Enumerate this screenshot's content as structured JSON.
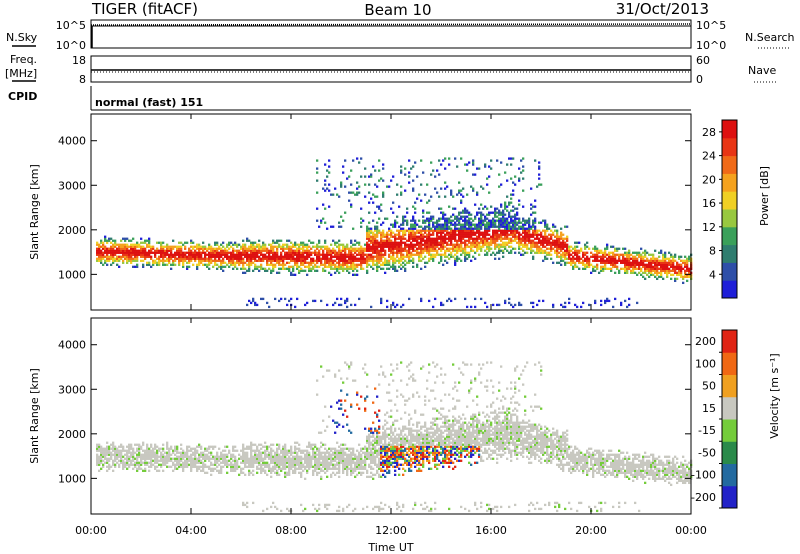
{
  "header": {
    "station": "TIGER (fitACF)",
    "beam": "Beam 10",
    "date": "31/Oct/2013"
  },
  "nsky_panel": {
    "left_label": "N.Sky",
    "right_label": "N.Search",
    "left_ticks": [
      "10^5",
      "10^0"
    ],
    "right_ticks": [
      "10^5",
      "10^0"
    ]
  },
  "freq_panel": {
    "left_label_1": "Freq.",
    "left_label_2": "[MHz]",
    "right_label": "Nave",
    "left_ticks": [
      "18",
      "8"
    ],
    "right_ticks": [
      "60",
      "0"
    ]
  },
  "cpid": {
    "label": "CPID",
    "text": "normal (fast) 151"
  },
  "x_axis": {
    "label": "Time UT",
    "ticks": [
      "00:00",
      "04:00",
      "08:00",
      "12:00",
      "16:00",
      "20:00",
      "00:00"
    ]
  },
  "chart_data": [
    {
      "type": "heatmap",
      "name": "power",
      "ylabel": "Slant Range [km]",
      "ylim": [
        200,
        4600
      ],
      "yticks": [
        "1000",
        "2000",
        "3000",
        "4000"
      ],
      "xlim_hours": [
        0,
        24
      ],
      "colorbar_label": "Power [dB]",
      "colorbar_ticks": [
        "4",
        "8",
        "12",
        "16",
        "20",
        "24",
        "28"
      ],
      "colorbar_range": [
        0,
        30
      ],
      "colors": [
        "#1f1fd8",
        "#2e4fa8",
        "#2f7d6f",
        "#3aa05a",
        "#98c840",
        "#f0d024",
        "#f5a21e",
        "#f06a18",
        "#e83515",
        "#dd1010"
      ]
    },
    {
      "type": "heatmap",
      "name": "velocity",
      "ylabel": "Slant Range [km]",
      "ylim": [
        200,
        4600
      ],
      "yticks": [
        "1000",
        "2000",
        "3000",
        "4000"
      ],
      "xlim_hours": [
        0,
        24
      ],
      "colorbar_label": "Velocity [m s⁻¹]",
      "colorbar_ticks": [
        "200",
        "100",
        "50",
        "15",
        "-15",
        "-50",
        "-100",
        "-200"
      ],
      "colors": [
        "#2222c8",
        "#236aa0",
        "#2a8a4a",
        "#74cc3a",
        "#c8c8c0",
        "#f0a020",
        "#f06814",
        "#e02414"
      ]
    }
  ]
}
